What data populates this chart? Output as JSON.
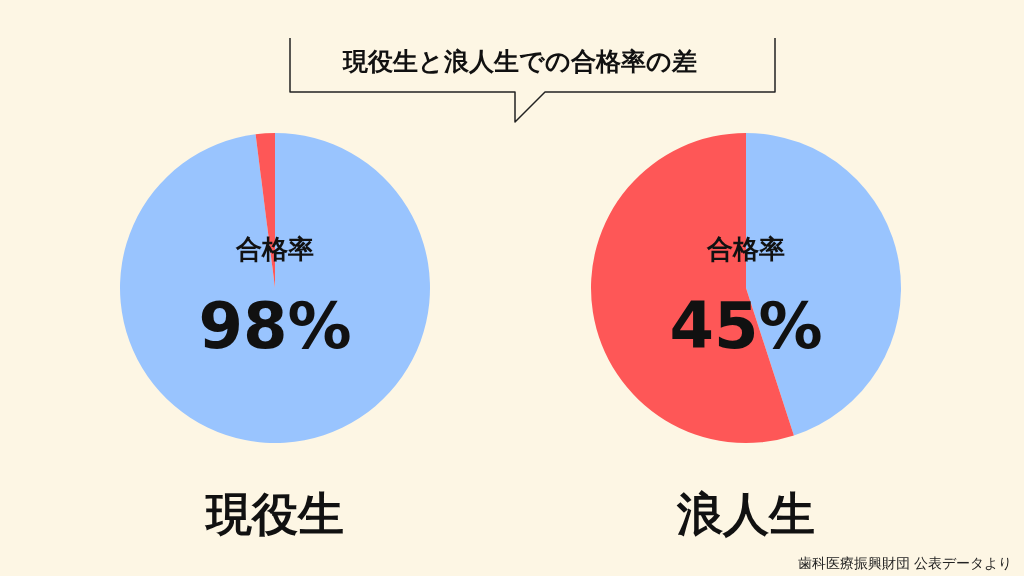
{
  "chart_data": [
    {
      "type": "pie",
      "title": "現役生と浪人生での合格率の差",
      "xlabel": "現役生",
      "categories": [
        "合格率",
        null
      ],
      "values": [
        98,
        2
      ],
      "colors": [
        "#99c4fe",
        "#fe5757"
      ],
      "value_labels": [
        "98%",
        null
      ]
    },
    {
      "type": "pie",
      "xlabel": "浪人生",
      "categories": [
        "合格率",
        null
      ],
      "values": [
        45,
        55
      ],
      "colors": [
        "#99c4fe",
        "#fe5757"
      ],
      "value_labels": [
        "45%",
        null
      ],
      "annotations": [
        "歯科医療振興財団 公表データより"
      ]
    }
  ]
}
